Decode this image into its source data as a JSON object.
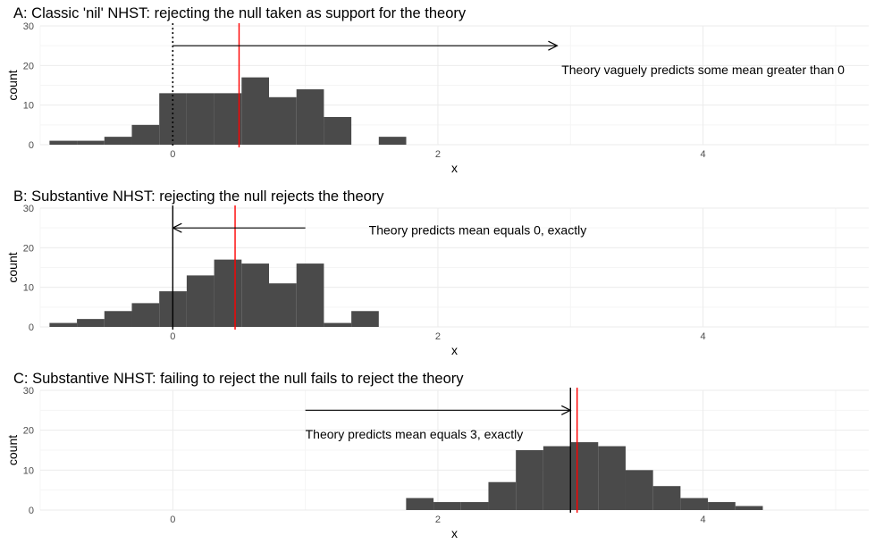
{
  "chart_data": [
    {
      "type": "histogram",
      "title": "A: Classic 'nil' NHST: rejecting the null taken as support for the theory",
      "xlabel": "x",
      "ylabel": "count",
      "xlim": [
        -1.0,
        5.25
      ],
      "ylim": [
        0,
        30
      ],
      "x_ticks": [
        0,
        2,
        4
      ],
      "y_ticks": [
        0,
        10,
        20,
        30
      ],
      "grid": true,
      "bin_width": 0.207,
      "bins": [
        {
          "x0": -0.93,
          "count": 1
        },
        {
          "x0": -0.723,
          "count": 1
        },
        {
          "x0": -0.516,
          "count": 2
        },
        {
          "x0": -0.309,
          "count": 5
        },
        {
          "x0": -0.102,
          "count": 13
        },
        {
          "x0": 0.105,
          "count": 13
        },
        {
          "x0": 0.312,
          "count": 13
        },
        {
          "x0": 0.519,
          "count": 17
        },
        {
          "x0": 0.726,
          "count": 12
        },
        {
          "x0": 0.933,
          "count": 14
        },
        {
          "x0": 1.14,
          "count": 7
        },
        {
          "x0": 1.347,
          "count": 0
        },
        {
          "x0": 1.554,
          "count": 2
        }
      ],
      "vlines": [
        {
          "x": 0,
          "color": "#000000",
          "style": "dotted"
        },
        {
          "x": 0.5,
          "color": "#ff0000",
          "style": "solid"
        }
      ],
      "arrow": {
        "x_from": 0,
        "x_to": 2.9,
        "y": 25
      },
      "annotation": {
        "text": "Theory vaguely predicts some mean greater than 0",
        "x": 4.0,
        "y": 19
      }
    },
    {
      "type": "histogram",
      "title": "B: Substantive NHST: rejecting the null rejects the theory",
      "xlabel": "x",
      "ylabel": "count",
      "xlim": [
        -1.0,
        5.25
      ],
      "ylim": [
        0,
        30
      ],
      "x_ticks": [
        0,
        2,
        4
      ],
      "y_ticks": [
        0,
        10,
        20,
        30
      ],
      "grid": true,
      "bin_width": 0.207,
      "bins": [
        {
          "x0": -0.93,
          "count": 1
        },
        {
          "x0": -0.723,
          "count": 2
        },
        {
          "x0": -0.516,
          "count": 4
        },
        {
          "x0": -0.309,
          "count": 6
        },
        {
          "x0": -0.102,
          "count": 9
        },
        {
          "x0": 0.105,
          "count": 13
        },
        {
          "x0": 0.312,
          "count": 17
        },
        {
          "x0": 0.519,
          "count": 16
        },
        {
          "x0": 0.726,
          "count": 11
        },
        {
          "x0": 0.933,
          "count": 16
        },
        {
          "x0": 1.14,
          "count": 1
        },
        {
          "x0": 1.347,
          "count": 4
        }
      ],
      "vlines": [
        {
          "x": 0,
          "color": "#000000",
          "style": "solid"
        },
        {
          "x": 0.47,
          "color": "#ff0000",
          "style": "solid"
        }
      ],
      "arrow": {
        "x_from": 1.0,
        "x_to": 0,
        "y": 25
      },
      "annotation": {
        "text": "Theory predicts mean equals 0, exactly",
        "x": 2.3,
        "y": 24.5
      }
    },
    {
      "type": "histogram",
      "title": "C: Substantive NHST: failing to reject the null fails to reject the theory",
      "xlabel": "x",
      "ylabel": "count",
      "xlim": [
        -1.0,
        5.25
      ],
      "ylim": [
        0,
        30
      ],
      "x_ticks": [
        0,
        2,
        4
      ],
      "y_ticks": [
        0,
        10,
        20,
        30
      ],
      "grid": true,
      "bin_width": 0.207,
      "bins": [
        {
          "x0": 1.76,
          "count": 3
        },
        {
          "x0": 1.967,
          "count": 2
        },
        {
          "x0": 2.174,
          "count": 2
        },
        {
          "x0": 2.381,
          "count": 7
        },
        {
          "x0": 2.588,
          "count": 15
        },
        {
          "x0": 2.795,
          "count": 16
        },
        {
          "x0": 3.002,
          "count": 17
        },
        {
          "x0": 3.209,
          "count": 16
        },
        {
          "x0": 3.416,
          "count": 10
        },
        {
          "x0": 3.623,
          "count": 6
        },
        {
          "x0": 3.83,
          "count": 3
        },
        {
          "x0": 4.037,
          "count": 2
        },
        {
          "x0": 4.244,
          "count": 1
        }
      ],
      "vlines": [
        {
          "x": 3.0,
          "color": "#000000",
          "style": "solid"
        },
        {
          "x": 3.05,
          "color": "#ff0000",
          "style": "solid"
        }
      ],
      "arrow": {
        "x_from": 1.0,
        "x_to": 3.0,
        "y": 25
      },
      "annotation": {
        "text": "Theory predicts mean equals 3, exactly",
        "x": 1.0,
        "y": 19
      }
    }
  ]
}
